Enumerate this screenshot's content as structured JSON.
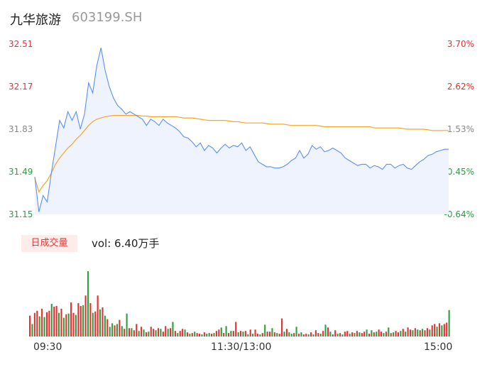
{
  "header": {
    "name": "九华旅游",
    "code": "603199.SH"
  },
  "price_axis": [
    "32.51",
    "32.17",
    "31.83",
    "31.49",
    "31.15"
  ],
  "pct_axis": [
    "3.70%",
    "2.62%",
    "1.53%",
    "0.45%",
    "-0.64%"
  ],
  "volume": {
    "tab_label": "日成交量",
    "text": "vol: 6.40万手"
  },
  "time_axis": [
    "09:30",
    "11:30/13:00",
    "15:00"
  ],
  "colors": {
    "price": "#5b8ff9",
    "avg": "#f5a623",
    "up": "#e83030",
    "down": "#2aa040",
    "fill": "#eef3fd"
  },
  "chart_data": {
    "type": "line",
    "x_labels": [
      "09:30",
      "11:30/13:00",
      "15:00"
    ],
    "ylim": [
      31.15,
      32.51
    ],
    "y2lim": [
      "-0.64%",
      "3.70%"
    ],
    "series": [
      {
        "values": [
          31.45,
          31.17,
          31.3,
          31.25,
          31.48,
          31.69,
          31.9,
          31.84,
          31.97,
          31.9,
          31.97,
          31.83,
          31.95,
          32.2,
          32.12,
          32.34,
          32.48,
          32.3,
          32.17,
          32.08,
          32.02,
          31.99,
          31.95,
          31.97,
          31.95,
          31.93,
          31.91,
          31.86,
          31.91,
          31.89,
          31.86,
          31.91,
          31.88,
          31.86,
          31.84,
          31.81,
          31.77,
          31.76,
          31.73,
          31.69,
          31.72,
          31.66,
          31.7,
          31.68,
          31.64,
          31.68,
          31.71,
          31.68,
          31.7,
          31.69,
          31.72,
          31.66,
          31.69,
          31.63,
          31.57,
          31.55,
          31.53,
          31.53,
          31.52,
          31.52,
          31.53,
          31.55,
          31.58,
          31.6,
          31.66,
          31.6,
          31.63,
          31.7,
          31.67,
          31.69,
          31.65,
          31.66,
          31.68,
          31.66,
          31.64,
          31.6,
          31.58,
          31.56,
          31.54,
          31.55,
          31.55,
          31.52,
          31.54,
          31.53,
          31.51,
          31.55,
          31.55,
          31.52,
          31.54,
          31.55,
          31.52,
          31.51,
          31.54,
          31.57,
          31.59,
          31.62,
          31.63,
          31.65,
          31.66,
          31.67,
          31.67
        ]
      },
      {
        "values": [
          31.44,
          31.33,
          31.38,
          31.42,
          31.48,
          31.55,
          31.6,
          31.64,
          31.68,
          31.71,
          31.75,
          31.78,
          31.82,
          31.86,
          31.89,
          31.91,
          31.92,
          31.93,
          31.935,
          31.94,
          31.94,
          31.94,
          31.94,
          31.94,
          31.94,
          31.94,
          31.935,
          31.935,
          31.93,
          31.93,
          31.93,
          31.93,
          31.93,
          31.93,
          31.93,
          31.925,
          31.92,
          31.92,
          31.92,
          31.915,
          31.91,
          31.905,
          31.9,
          31.9,
          31.9,
          31.9,
          31.9,
          31.895,
          31.89,
          31.89,
          31.885,
          31.88,
          31.88,
          31.88,
          31.88,
          31.88,
          31.875,
          31.87,
          31.87,
          31.87,
          31.87,
          31.865,
          31.86,
          31.86,
          31.86,
          31.86,
          31.86,
          31.86,
          31.86,
          31.855,
          31.85,
          31.85,
          31.85,
          31.85,
          31.85,
          31.85,
          31.85,
          31.85,
          31.85,
          31.85,
          31.85,
          31.85,
          31.84,
          31.84,
          31.84,
          31.84,
          31.84,
          31.84,
          31.84,
          31.835,
          31.83,
          31.83,
          31.83,
          31.83,
          31.83,
          31.825,
          31.82,
          31.82,
          31.82,
          31.82,
          31.82
        ]
      }
    ],
    "volume_values": [
      0.3,
      0.18,
      0.34,
      0.37,
      0.29,
      0.4,
      0.28,
      0.35,
      0.37,
      0.47,
      0.43,
      0.44,
      0.34,
      0.4,
      0.27,
      0.32,
      0.33,
      0.49,
      0.34,
      0.31,
      0.48,
      0.44,
      0.45,
      0.59,
      0.94,
      0.48,
      0.34,
      0.36,
      0.59,
      0.39,
      0.42,
      0.3,
      0.25,
      0.14,
      0.19,
      0.16,
      0.18,
      0.24,
      0.15,
      0.11,
      0.33,
      0.12,
      0.12,
      0.09,
      0.18,
      0.08,
      0.14,
      0.1,
      0.06,
      0.07,
      0.14,
      0.11,
      0.09,
      0.12,
      0.11,
      0.07,
      0.15,
      0.11,
      0.12,
      0.21,
      0.08,
      0.05,
      0.08,
      0.11,
      0.1,
      0.06,
      0.04,
      0.05,
      0.07,
      0.05,
      0.04,
      0.03,
      0.06,
      0.04,
      0.05,
      0.04,
      0.05,
      0.08,
      0.1,
      0.13,
      0.05,
      0.15,
      0.05,
      0.08,
      0.08,
      0.21,
      0.06,
      0.08,
      0.07,
      0.08,
      0.03,
      0.1,
      0.04,
      0.1,
      0.04,
      0.03,
      0.05,
      0.17,
      0.07,
      0.07,
      0.12,
      0.06,
      0.05,
      0.04,
      0.26,
      0.07,
      0.11,
      0.06,
      0.04,
      0.05,
      0.14,
      0.04,
      0.06,
      0.03,
      0.04,
      0.03,
      0.06,
      0.03,
      0.09,
      0.05,
      0.04,
      0.08,
      0.17,
      0.13,
      0.07,
      0.03,
      0.09,
      0.04,
      0.05,
      0.03,
      0.07,
      0.08,
      0.04,
      0.06,
      0.05,
      0.08,
      0.06,
      0.05,
      0.07,
      0.1,
      0.04,
      0.09,
      0.06,
      0.07,
      0.1,
      0.07,
      0.05,
      0.07,
      0.13,
      0.05,
      0.06,
      0.08,
      0.06,
      0.08,
      0.11,
      0.07,
      0.13,
      0.1,
      0.09,
      0.12,
      0.1,
      0.09,
      0.11,
      0.09,
      0.12,
      0.1,
      0.16,
      0.18,
      0.14,
      0.19,
      0.16,
      0.18,
      0.2,
      0.38
    ],
    "volume_up": [
      1,
      0,
      1,
      1,
      0,
      1,
      0,
      1,
      1,
      0,
      1,
      1,
      0,
      1,
      0,
      1,
      0,
      1,
      1,
      0,
      1,
      1,
      0,
      1,
      0,
      1,
      0,
      1,
      1,
      0,
      1,
      0,
      1,
      0,
      0,
      1,
      0,
      1,
      0,
      1,
      0,
      1,
      0,
      1,
      1,
      0,
      1,
      0,
      1,
      0,
      1,
      1,
      0,
      1,
      0,
      1,
      1,
      0,
      1,
      0,
      1,
      0,
      1,
      1,
      0,
      1,
      0,
      1,
      0,
      1,
      1,
      0,
      1,
      0,
      0,
      1,
      0,
      1,
      1,
      0,
      1,
      0,
      1,
      0,
      1,
      1,
      0,
      1,
      0,
      1,
      0,
      1,
      0,
      1,
      1,
      0,
      1,
      0,
      1,
      1,
      0,
      1,
      0,
      1,
      1,
      0,
      1,
      0,
      0,
      1,
      0,
      1,
      0,
      1,
      1,
      0,
      1,
      0,
      1,
      1,
      0,
      1,
      0,
      1,
      0,
      1,
      1,
      0,
      1,
      0,
      1,
      1,
      0,
      1,
      0,
      1,
      0,
      1,
      1,
      0,
      1,
      0,
      1,
      0,
      1,
      1,
      0,
      1,
      0,
      1,
      0,
      1,
      1,
      0,
      1,
      0,
      1,
      1,
      0,
      1,
      0,
      1,
      0,
      1,
      1,
      0,
      1,
      1,
      0,
      1,
      0,
      1,
      1,
      0,
      1,
      1
    ]
  }
}
